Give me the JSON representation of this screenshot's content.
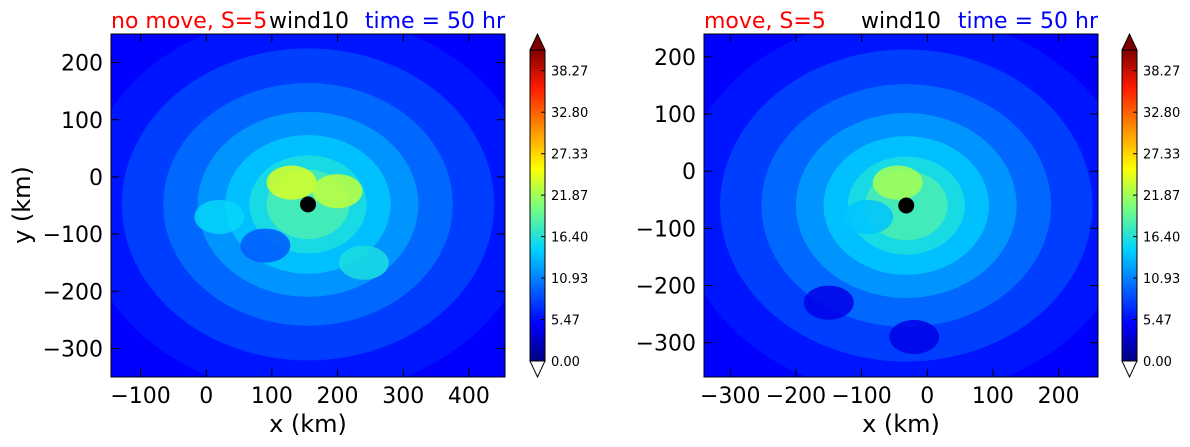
{
  "chart_data": [
    {
      "type": "heatmap",
      "variable": "wind10",
      "title_left": "no move, S=5",
      "title_center": "wind10",
      "title_right": "time = 50 hr",
      "colors": {
        "title_left": "#ff0000",
        "title_center": "#000000",
        "title_right": "#0000ff"
      },
      "xlabel": "x (km)",
      "ylabel": "y (km)",
      "xlim": [
        -145,
        455
      ],
      "ylim": [
        -350,
        250
      ],
      "xticks": [
        -100,
        0,
        100,
        200,
        300,
        400
      ],
      "yticks": [
        200,
        100,
        0,
        -100,
        -200,
        -300
      ],
      "center_marker": {
        "x": 155,
        "y": -48
      },
      "features": [
        {
          "x": 130,
          "y": -10,
          "value": 24
        },
        {
          "x": 200,
          "y": -25,
          "value": 23
        },
        {
          "x": 20,
          "y": -70,
          "value": 15
        },
        {
          "x": 240,
          "y": -150,
          "value": 16
        },
        {
          "x": 90,
          "y": -120,
          "value": 9
        }
      ],
      "colorbar": {
        "ticks": [
          "38.27",
          "32.80",
          "27.33",
          "21.87",
          "16.40",
          "10.93",
          "5.47",
          "0.00"
        ],
        "min": 0,
        "max": 41,
        "extend": "both"
      }
    },
    {
      "type": "heatmap",
      "variable": "wind10",
      "title_left": "move, S=5",
      "title_center": "wind10",
      "title_right": "time = 50 hr",
      "colors": {
        "title_left": "#ff0000",
        "title_center": "#000000",
        "title_right": "#0000ff"
      },
      "xlabel": "x (km)",
      "ylabel": "",
      "xlim": [
        -340,
        260
      ],
      "ylim": [
        -360,
        240
      ],
      "xticks": [
        -300,
        -200,
        -100,
        0,
        100,
        200
      ],
      "yticks": [
        200,
        100,
        0,
        -100,
        -200,
        -300
      ],
      "center_marker": {
        "x": -32,
        "y": -60
      },
      "features": [
        {
          "x": -45,
          "y": -20,
          "value": 22
        },
        {
          "x": -90,
          "y": -80,
          "value": 14
        },
        {
          "x": -150,
          "y": -230,
          "value": 4
        },
        {
          "x": -20,
          "y": -290,
          "value": 4
        }
      ],
      "colorbar": {
        "ticks": [
          "38.27",
          "32.80",
          "27.33",
          "21.87",
          "16.40",
          "10.93",
          "5.47",
          "0.00"
        ],
        "min": 0,
        "max": 41,
        "extend": "both"
      }
    }
  ]
}
